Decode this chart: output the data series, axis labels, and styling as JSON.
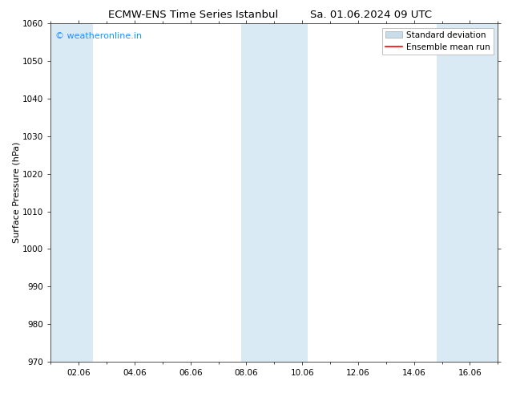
{
  "title_left": "ECMW-ENS Time Series Istanbul",
  "title_right": "Sa. 01.06.2024 09 UTC",
  "ylabel": "Surface Pressure (hPa)",
  "ylim": [
    970,
    1060
  ],
  "yticks": [
    970,
    980,
    990,
    1000,
    1010,
    1020,
    1030,
    1040,
    1050,
    1060
  ],
  "xtick_labels": [
    "02.06",
    "04.06",
    "06.06",
    "08.06",
    "10.06",
    "12.06",
    "14.06",
    "16.06"
  ],
  "xtick_positions": [
    2,
    4,
    6,
    8,
    10,
    12,
    14,
    16
  ],
  "xlim": [
    1,
    17
  ],
  "shaded_bands": [
    {
      "x_start": 1.0,
      "x_end": 2.5
    },
    {
      "x_start": 7.8,
      "x_end": 10.2
    },
    {
      "x_start": 14.8,
      "x_end": 17.0
    }
  ],
  "shade_color": "#daeaf5",
  "background_color": "#ffffff",
  "watermark_text": "© weatheronline.in",
  "watermark_color": "#1e90ff",
  "legend_std_label": "Standard deviation",
  "legend_mean_label": "Ensemble mean run",
  "legend_std_facecolor": "#c8dcea",
  "legend_std_edgecolor": "#aaaaaa",
  "legend_mean_color": "#ff0000",
  "title_fontsize": 9.5,
  "tick_fontsize": 7.5,
  "ylabel_fontsize": 8,
  "watermark_fontsize": 8,
  "legend_fontsize": 7.5
}
